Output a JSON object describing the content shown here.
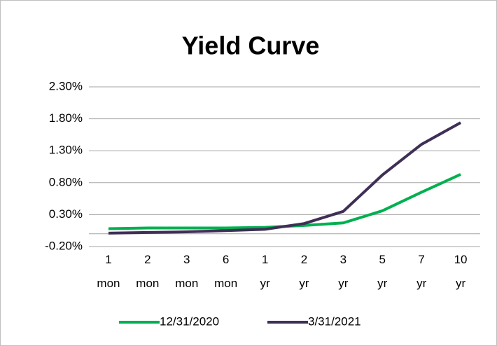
{
  "chart_data": {
    "type": "line",
    "title": "Yield Curve",
    "categories": [
      "1 mon",
      "2 mon",
      "3 mon",
      "6 mon",
      "1 yr",
      "2 yr",
      "3 yr",
      "5 yr",
      "7 yr",
      "10 yr"
    ],
    "series": [
      {
        "name": "12/31/2020",
        "color": "#00b050",
        "values": [
          0.08,
          0.09,
          0.09,
          0.09,
          0.1,
          0.13,
          0.17,
          0.36,
          0.65,
          0.93
        ]
      },
      {
        "name": "3/31/2021",
        "color": "#3f2f55",
        "values": [
          0.01,
          0.02,
          0.03,
          0.05,
          0.07,
          0.16,
          0.35,
          0.92,
          1.4,
          1.74
        ]
      }
    ],
    "ylim": [
      -0.2,
      2.3
    ],
    "yticks": [
      {
        "value": -0.2,
        "label": "-0.20%"
      },
      {
        "value": 0.3,
        "label": "0.30%"
      },
      {
        "value": 0.8,
        "label": "0.80%"
      },
      {
        "value": 1.3,
        "label": "1.30%"
      },
      {
        "value": 1.8,
        "label": "1.80%"
      },
      {
        "value": 2.3,
        "label": "2.30%"
      }
    ],
    "grid": true,
    "legend": "bottom"
  }
}
